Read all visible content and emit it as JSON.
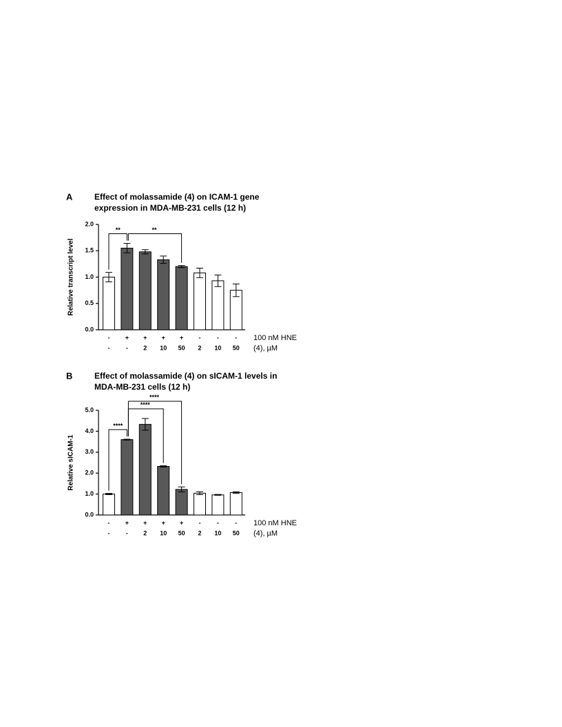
{
  "chart_data": [
    {
      "type": "bar",
      "panel": "A",
      "title": [
        "Effect of molassamide (4) on ICAM-1 gene",
        "expression in MDA-MB-231 cells (12 h)"
      ],
      "ylabel": "Relative transcript level",
      "values": [
        1.0,
        1.55,
        1.48,
        1.33,
        1.2,
        1.08,
        0.93,
        0.75
      ],
      "errors": [
        0.09,
        0.09,
        0.04,
        0.07,
        0.02,
        0.09,
        0.11,
        0.12
      ],
      "bar_colors": [
        "#ffffff",
        "#595959",
        "#595959",
        "#595959",
        "#595959",
        "#ffffff",
        "#ffffff",
        "#ffffff"
      ],
      "ylim": [
        0,
        2
      ],
      "yticks": [
        {
          "value": 0,
          "label": "0.0"
        },
        {
          "value": 0.5,
          "label": "0.5"
        },
        {
          "value": 1,
          "label": "1.0"
        },
        {
          "value": 1.5,
          "label": "1.5"
        },
        {
          "value": 2,
          "label": "2.0"
        }
      ],
      "conditions": [
        {
          "label": "100 nM HNE",
          "values": [
            "-",
            "+",
            "+",
            "+",
            "+",
            "-",
            "-",
            "-"
          ]
        },
        {
          "label": "(4), µM",
          "values": [
            "-",
            "-",
            "2",
            "10",
            "50",
            "2",
            "10",
            "50"
          ]
        }
      ],
      "annotations": [
        {
          "from": 0,
          "to": 1,
          "label": "**"
        },
        {
          "from": 1,
          "to": 4,
          "label": "**"
        }
      ]
    },
    {
      "type": "bar",
      "panel": "B",
      "title": [
        "Effect of molassamide (4) on sICAM-1 levels in",
        "MDA-MB-231 cells (12 h)"
      ],
      "ylabel": "Relative sICAM-1",
      "values": [
        1.0,
        3.6,
        4.33,
        2.32,
        1.22,
        1.04,
        0.96,
        1.07
      ],
      "errors": [
        0.03,
        0.02,
        0.28,
        0.03,
        0.12,
        0.07,
        0.02,
        0.04
      ],
      "bar_colors": [
        "#ffffff",
        "#595959",
        "#595959",
        "#595959",
        "#595959",
        "#ffffff",
        "#ffffff",
        "#ffffff"
      ],
      "ylim": [
        0,
        5
      ],
      "yticks": [
        {
          "value": 0,
          "label": "0.0"
        },
        {
          "value": 1,
          "label": "1.0"
        },
        {
          "value": 2,
          "label": "2.0"
        },
        {
          "value": 3,
          "label": "3.0"
        },
        {
          "value": 4,
          "label": "4.0"
        },
        {
          "value": 5,
          "label": "5.0"
        }
      ],
      "conditions": [
        {
          "label": "100 nM HNE",
          "values": [
            "-",
            "+",
            "+",
            "+",
            "+",
            "-",
            "-",
            "-"
          ]
        },
        {
          "label": "(4), µM",
          "values": [
            "-",
            "-",
            "2",
            "10",
            "50",
            "2",
            "10",
            "50"
          ]
        }
      ],
      "annotations": [
        {
          "from": 0,
          "to": 1,
          "label": "****"
        },
        {
          "from": 1,
          "to": 3,
          "label": "****"
        },
        {
          "from": 1,
          "to": 4,
          "label": "****"
        }
      ]
    }
  ]
}
